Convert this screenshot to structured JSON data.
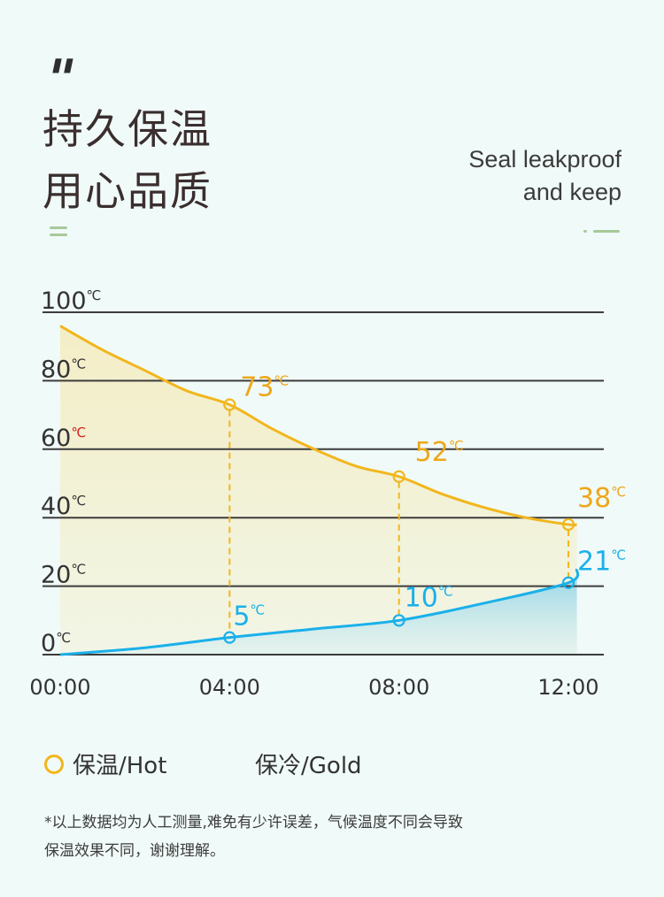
{
  "header": {
    "headline_line1": "持久保温",
    "headline_line2": "用心品质",
    "subtitle_line1": "Seal leakproof",
    "subtitle_line2": "and keep"
  },
  "colors": {
    "hot": "#f2b61c",
    "hot_label": "#eda71a",
    "cold": "#1ab0ea",
    "grid": "#3c3c3c",
    "highlight_unit": "#d21f1f"
  },
  "chart_data": {
    "type": "line",
    "unit": "℃",
    "x_categories": [
      "00:00",
      "04:00",
      "08:00",
      "12:00"
    ],
    "x_range": [
      0,
      12
    ],
    "ylim": [
      0,
      100
    ],
    "y_ticks": [
      0,
      20,
      40,
      60,
      80,
      100
    ],
    "highlight_y_tick": 60,
    "series": [
      {
        "name": "保温/Hot",
        "x": [
          0,
          1,
          2,
          3,
          4,
          5,
          6,
          7,
          8,
          9,
          10,
          11,
          12,
          12.2
        ],
        "y": [
          96,
          89,
          83,
          77,
          73,
          66,
          60,
          55,
          52,
          47,
          43,
          40,
          38,
          38
        ],
        "labeled_points": [
          {
            "x": 4,
            "y": 73,
            "label": "73"
          },
          {
            "x": 8,
            "y": 52,
            "label": "52"
          },
          {
            "x": 12,
            "y": 38,
            "label": "38"
          }
        ]
      },
      {
        "name": "保冷/Gold",
        "x": [
          0,
          2,
          4,
          6,
          8,
          10,
          12,
          12.2
        ],
        "y": [
          0,
          2,
          5,
          7.5,
          10,
          15,
          21,
          25
        ],
        "labeled_points": [
          {
            "x": 4,
            "y": 5,
            "label": "5"
          },
          {
            "x": 8,
            "y": 10,
            "label": "10"
          },
          {
            "x": 12,
            "y": 21,
            "label": "21"
          }
        ]
      }
    ]
  },
  "legend": {
    "hot_label": "保温/Hot",
    "cold_label": "保冷/Gold"
  },
  "footnote": {
    "line1": "*以上数据均为人工测量,难免有少许误差，气候温度不同会导致",
    "line2": "保温效果不同，谢谢理解。"
  }
}
